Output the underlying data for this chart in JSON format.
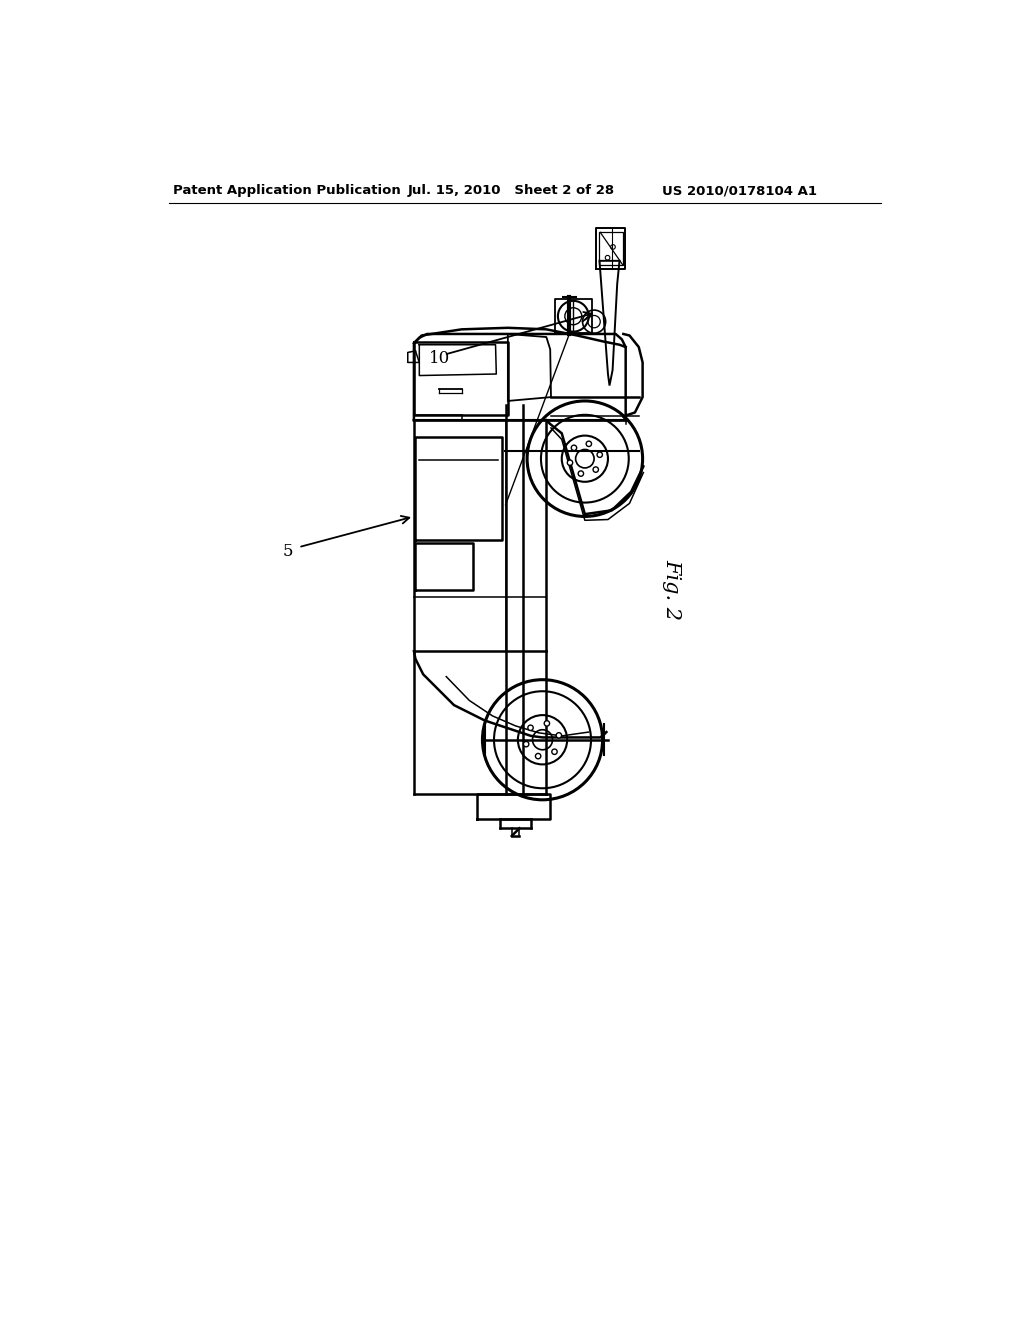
{
  "background_color": "#ffffff",
  "header_text_left": "Patent Application Publication",
  "header_text_mid": "Jul. 15, 2010   Sheet 2 of 28",
  "header_text_right": "US 2010/0178104 A1",
  "fig_label": "Fig. 2",
  "label_10": "10",
  "label_5": "5",
  "header_fontsize": 9.5,
  "fig_label_fontsize": 15,
  "annotation_fontsize": 12
}
